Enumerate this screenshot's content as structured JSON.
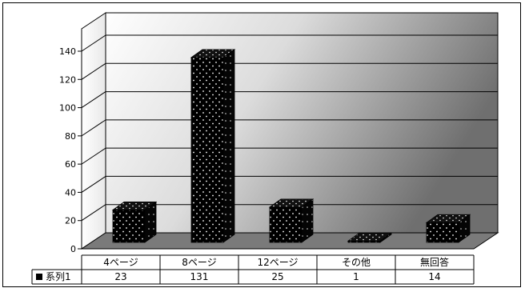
{
  "chart_data": {
    "type": "bar",
    "style": "3d-column",
    "categories": [
      "4ページ",
      "8ページ",
      "12ページ",
      "その他",
      "無回答"
    ],
    "series": [
      {
        "name": "系列1",
        "values": [
          23,
          131,
          25,
          1,
          14
        ]
      }
    ],
    "ylim": [
      0,
      140
    ],
    "yticks": [
      0,
      20,
      40,
      60,
      80,
      100,
      120,
      140
    ],
    "grid": true,
    "data_table": true,
    "legend_key_in_table": true
  },
  "colors": {
    "bar_fill": "#000000",
    "bar_dots": "#ffffff",
    "back_wall_gradient": [
      "#ffffff",
      "#6f6f6f"
    ],
    "floor": "#7a7a7a",
    "gridline": "#000000"
  }
}
